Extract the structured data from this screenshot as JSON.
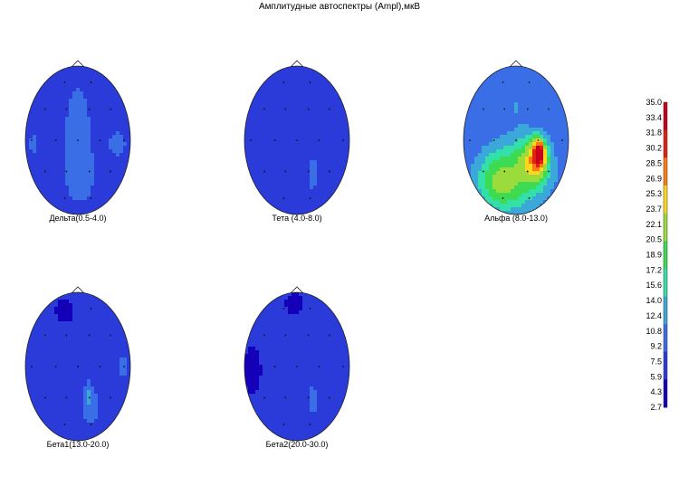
{
  "chart_data": {
    "type": "heatmap",
    "title": "Амплитудные автоспектры (Ampl),мкВ",
    "colorbar": {
      "ticks": [
        "35.0",
        "33.4",
        "31.8",
        "30.2",
        "28.5",
        "26.9",
        "25.3",
        "23.7",
        "22.1",
        "20.5",
        "18.9",
        "17.2",
        "15.6",
        "14.0",
        "12.4",
        "10.8",
        "9.2",
        "7.5",
        "5.9",
        "4.3",
        "2.7"
      ],
      "min": 2.7,
      "max": 35.0,
      "colors": [
        "#1400b8",
        "#2b3bd9",
        "#3a6ee6",
        "#3aa8d8",
        "#33e0a8",
        "#3ddb52",
        "#9bdb3b",
        "#ffd81e",
        "#ff7a12",
        "#e02010",
        "#c8001c"
      ]
    },
    "maps": [
      {
        "label": "Дельта(0.5-4.0)",
        "base": 7.0,
        "blobs": [
          {
            "x": 0.0,
            "y": -0.05,
            "rx": 0.38,
            "ry": 1.05,
            "v": 10.5
          },
          {
            "x": 0.75,
            "y": 0.05,
            "rx": 0.28,
            "ry": 0.28,
            "v": 10.0
          },
          {
            "x": -0.85,
            "y": 0.05,
            "rx": 0.12,
            "ry": 0.22,
            "v": 10.0
          },
          {
            "x": 0.05,
            "y": 0.45,
            "rx": 0.35,
            "ry": 0.45,
            "v": 11.5
          }
        ]
      },
      {
        "label": "Тета (4.0-8.0)",
        "base": 6.5,
        "blobs": [
          {
            "x": 0.3,
            "y": 0.45,
            "rx": 0.18,
            "ry": 0.42,
            "v": 10.0
          }
        ]
      },
      {
        "label": "Альфа (8.0-13.0)",
        "base": 9.0,
        "blobs": [
          {
            "x": 0.0,
            "y": -0.45,
            "rx": 0.45,
            "ry": 0.5,
            "v": 11.5
          },
          {
            "x": 0.05,
            "y": 0.45,
            "rx": 0.95,
            "ry": 0.65,
            "v": 16.0
          },
          {
            "x": -0.25,
            "y": 0.55,
            "rx": 0.65,
            "ry": 0.55,
            "v": 22.0
          },
          {
            "x": 0.3,
            "y": 0.3,
            "rx": 0.42,
            "ry": 0.45,
            "v": 24.0
          },
          {
            "x": 0.42,
            "y": 0.22,
            "rx": 0.22,
            "ry": 0.32,
            "v": 31.0
          },
          {
            "x": 0.44,
            "y": 0.18,
            "rx": 0.12,
            "ry": 0.22,
            "v": 35.0
          }
        ]
      },
      {
        "label": "Бета1(13.0-20.0)",
        "base": 6.5,
        "blobs": [
          {
            "x": -0.25,
            "y": -0.75,
            "rx": 0.22,
            "ry": 0.2,
            "v": 3.0
          },
          {
            "x": 0.85,
            "y": 0.0,
            "rx": 0.14,
            "ry": 0.28,
            "v": 10.0
          },
          {
            "x": 0.25,
            "y": 0.55,
            "rx": 0.3,
            "ry": 0.45,
            "v": 10.0
          },
          {
            "x": 0.2,
            "y": 0.4,
            "rx": 0.1,
            "ry": 0.28,
            "v": 12.0
          }
        ]
      },
      {
        "label": "Бета2(20.0-30.0)",
        "base": 6.5,
        "blobs": [
          {
            "x": -0.05,
            "y": -0.85,
            "rx": 0.22,
            "ry": 0.18,
            "v": 3.0
          },
          {
            "x": -0.85,
            "y": 0.05,
            "rx": 0.2,
            "ry": 0.4,
            "v": 2.8
          },
          {
            "x": 0.3,
            "y": 0.45,
            "rx": 0.18,
            "ry": 0.35,
            "v": 10.0
          }
        ]
      }
    ]
  }
}
